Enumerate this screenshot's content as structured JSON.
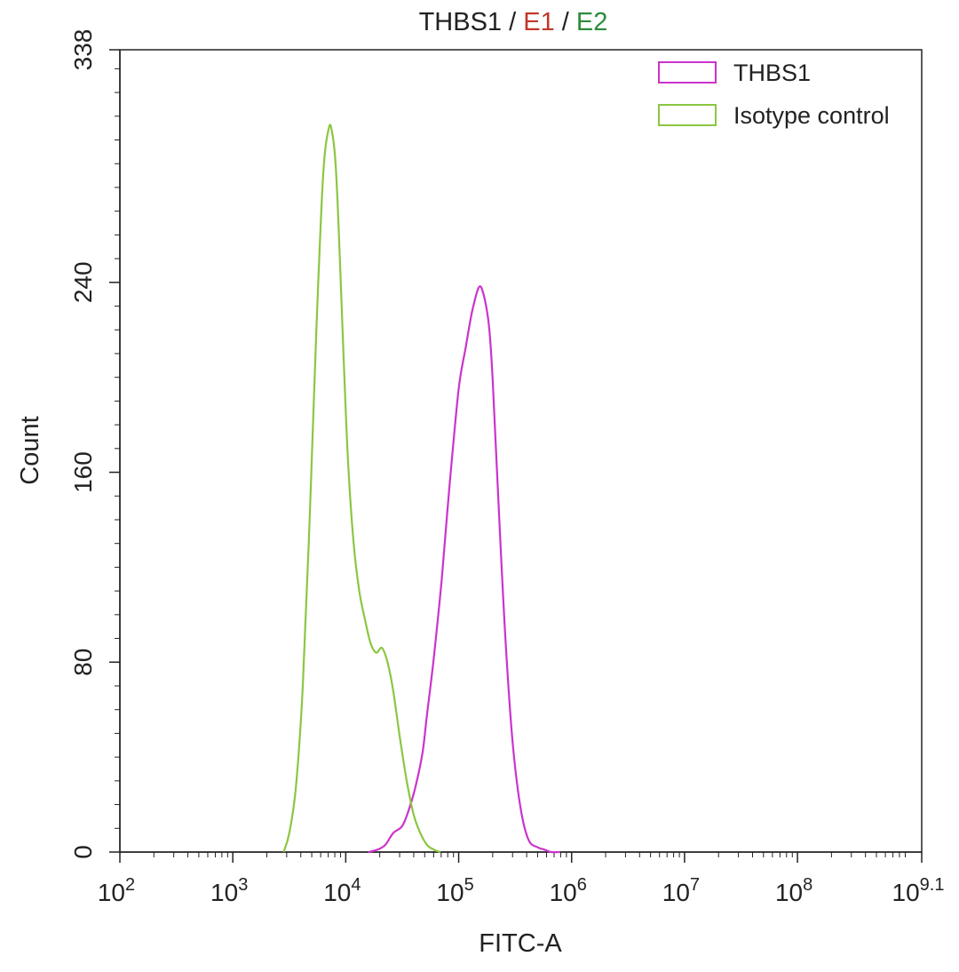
{
  "chart_data": {
    "type": "line",
    "title_parts": [
      {
        "text": "THBS1",
        "color": "#222222"
      },
      {
        "text": " / ",
        "color": "#222222"
      },
      {
        "text": "E1",
        "color": "#c0392b"
      },
      {
        "text": " / ",
        "color": "#222222"
      },
      {
        "text": "E2",
        "color": "#2e8b3a"
      }
    ],
    "xlabel": "FITC-A",
    "ylabel": "Count",
    "x_scale": "log",
    "xlim_log10": [
      2,
      9.1
    ],
    "ylim": [
      0,
      338
    ],
    "y_ticks": [
      0,
      80,
      160,
      240,
      338
    ],
    "x_ticks": [
      {
        "base": "10",
        "exp": "2",
        "log10": 2
      },
      {
        "base": "10",
        "exp": "3",
        "log10": 3
      },
      {
        "base": "10",
        "exp": "4",
        "log10": 4
      },
      {
        "base": "10",
        "exp": "5",
        "log10": 5
      },
      {
        "base": "10",
        "exp": "6",
        "log10": 6
      },
      {
        "base": "10",
        "exp": "7",
        "log10": 7
      },
      {
        "base": "10",
        "exp": "8",
        "log10": 8
      },
      {
        "base": "10",
        "exp": "9.1",
        "log10": 9.1
      }
    ],
    "legend_position": "top-right",
    "grid": false,
    "series": [
      {
        "name": "THBS1",
        "color": "#cc33cc",
        "x_log10": [
          4.2,
          4.28,
          4.35,
          4.42,
          4.5,
          4.56,
          4.62,
          4.68,
          4.72,
          4.78,
          4.85,
          4.92,
          5.0,
          5.06,
          5.12,
          5.18,
          5.22,
          5.26,
          5.28,
          5.3,
          5.33,
          5.37,
          5.42,
          5.48,
          5.55,
          5.62,
          5.7,
          5.76,
          5.82,
          5.9
        ],
        "y": [
          0,
          1,
          3,
          8,
          11,
          18,
          28,
          42,
          58,
          82,
          115,
          155,
          195,
          212,
          228,
          238,
          235,
          225,
          215,
          200,
          170,
          130,
          85,
          45,
          18,
          5,
          2,
          1,
          0,
          0
        ]
      },
      {
        "name": "Isotype control",
        "color": "#8cc641",
        "x_log10": [
          3.45,
          3.5,
          3.56,
          3.62,
          3.68,
          3.74,
          3.8,
          3.85,
          3.88,
          3.91,
          3.94,
          3.98,
          4.02,
          4.07,
          4.12,
          4.17,
          4.22,
          4.27,
          4.32,
          4.37,
          4.42,
          4.48,
          4.54,
          4.6,
          4.66,
          4.72,
          4.78,
          4.84
        ],
        "y": [
          0,
          8,
          28,
          70,
          140,
          220,
          285,
          305,
          303,
          290,
          260,
          210,
          165,
          130,
          110,
          98,
          88,
          84,
          86,
          80,
          68,
          48,
          30,
          16,
          8,
          3,
          1,
          0
        ]
      }
    ]
  }
}
